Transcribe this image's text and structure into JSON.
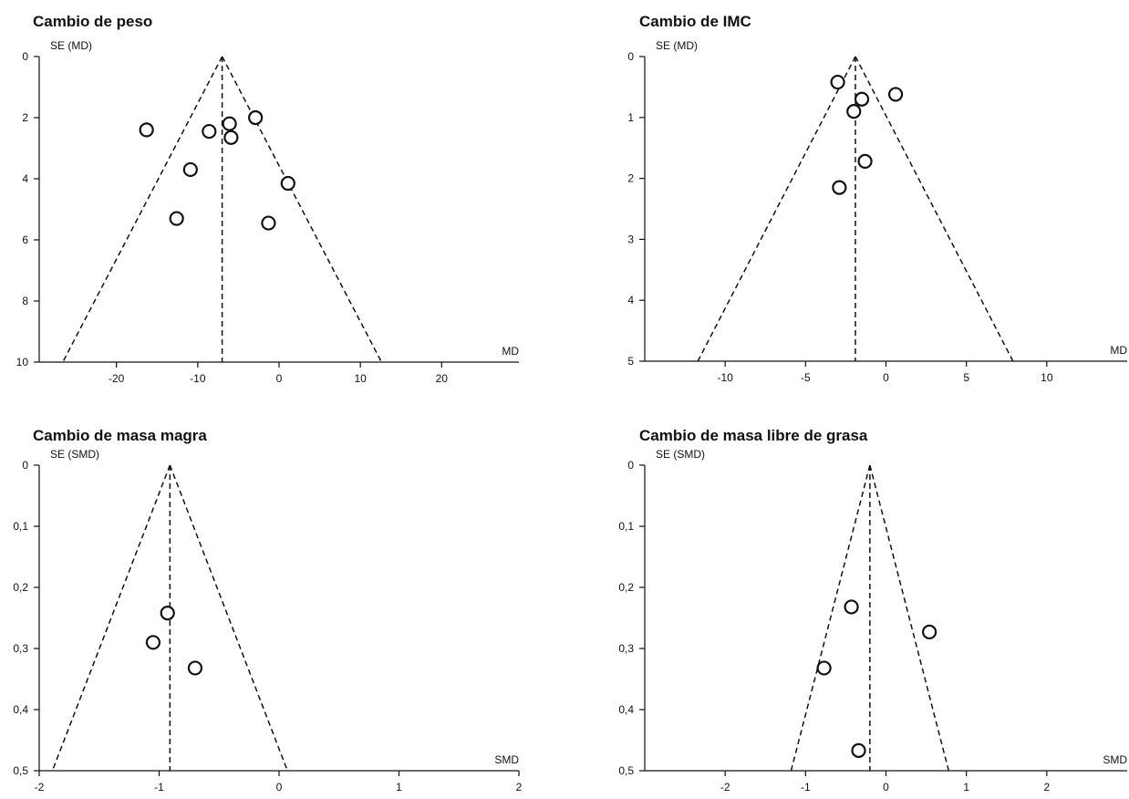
{
  "chart_data": [
    {
      "type": "scatter",
      "subtype": "funnel",
      "title": "Cambio de peso",
      "xlabel": "MD",
      "ylabel": "SE (MD)",
      "xlim": [
        -29.5,
        29.5
      ],
      "ylim": [
        10,
        0
      ],
      "y_reversed": true,
      "xticks": [
        -20,
        -10,
        0,
        10,
        20
      ],
      "xtick_labels": [
        "-20",
        "-10",
        "0",
        "10",
        "20"
      ],
      "yticks": [
        0,
        2,
        4,
        6,
        8,
        10
      ],
      "ytick_labels": [
        "0",
        "2",
        "4",
        "6",
        "8",
        "10"
      ],
      "pooled_estimate": -7,
      "funnel_limits_at_max_se": [
        -26.6,
        12.6
      ],
      "grid": false,
      "points": [
        {
          "x": -16.3,
          "y": 2.4
        },
        {
          "x": -8.6,
          "y": 2.45
        },
        {
          "x": -6.1,
          "y": 2.2
        },
        {
          "x": -5.9,
          "y": 2.65
        },
        {
          "x": -2.9,
          "y": 2.0
        },
        {
          "x": -10.9,
          "y": 3.7
        },
        {
          "x": 1.1,
          "y": 4.15
        },
        {
          "x": -12.6,
          "y": 5.3
        },
        {
          "x": -1.3,
          "y": 5.45
        }
      ]
    },
    {
      "type": "scatter",
      "subtype": "funnel",
      "title": "Cambio de IMC",
      "xlabel": "MD",
      "ylabel": "SE (MD)",
      "xlim": [
        -15,
        15
      ],
      "ylim": [
        5,
        0
      ],
      "y_reversed": true,
      "xticks": [
        -10,
        -5,
        0,
        5,
        10
      ],
      "xtick_labels": [
        "-10",
        "-5",
        "0",
        "5",
        "10"
      ],
      "yticks": [
        0,
        1,
        2,
        3,
        4,
        5
      ],
      "ytick_labels": [
        "0",
        "1",
        "2",
        "3",
        "4",
        "5"
      ],
      "pooled_estimate": -1.9,
      "funnel_limits_at_max_se": [
        -11.7,
        7.9
      ],
      "grid": false,
      "points": [
        {
          "x": -3.0,
          "y": 0.42
        },
        {
          "x": -1.5,
          "y": 0.7
        },
        {
          "x": 0.6,
          "y": 0.62
        },
        {
          "x": -2.0,
          "y": 0.9
        },
        {
          "x": -1.3,
          "y": 1.72
        },
        {
          "x": -2.9,
          "y": 2.15
        }
      ]
    },
    {
      "type": "scatter",
      "subtype": "funnel",
      "title": "Cambio de masa magra",
      "xlabel": "SMD",
      "ylabel": "SE (SMD)",
      "xlim": [
        -2,
        2
      ],
      "ylim": [
        0.5,
        0
      ],
      "y_reversed": true,
      "xticks": [
        -2,
        -1,
        0,
        1,
        2
      ],
      "xtick_labels": [
        "-2",
        "-1",
        "0",
        "1",
        "2"
      ],
      "yticks": [
        0,
        0.1,
        0.2,
        0.3,
        0.4,
        0.5
      ],
      "ytick_labels": [
        "0",
        "0,1",
        "0,2",
        "0,3",
        "0,4",
        "0,5"
      ],
      "pooled_estimate": -0.91,
      "funnel_limits_at_max_se": [
        -1.89,
        0.07
      ],
      "grid": false,
      "points": [
        {
          "x": -0.93,
          "y": 0.242
        },
        {
          "x": -1.05,
          "y": 0.29
        },
        {
          "x": -0.7,
          "y": 0.332
        }
      ]
    },
    {
      "type": "scatter",
      "subtype": "funnel",
      "title": "Cambio de masa libre de grasa",
      "xlabel": "SMD",
      "ylabel": "SE (SMD)",
      "xlim": [
        -3,
        3
      ],
      "ylim": [
        0.5,
        0
      ],
      "y_reversed": true,
      "xticks": [
        -2,
        -1,
        0,
        1,
        2
      ],
      "xtick_labels": [
        "-2",
        "-1",
        "0",
        "1",
        "2"
      ],
      "yticks": [
        0,
        0.1,
        0.2,
        0.3,
        0.4,
        0.5
      ],
      "ytick_labels": [
        "0",
        "0,1",
        "0,2",
        "0,3",
        "0,4",
        "0,5"
      ],
      "pooled_estimate": -0.2,
      "funnel_limits_at_max_se": [
        -1.18,
        0.78
      ],
      "grid": false,
      "points": [
        {
          "x": -0.43,
          "y": 0.232
        },
        {
          "x": 0.54,
          "y": 0.273
        },
        {
          "x": -0.77,
          "y": 0.332
        },
        {
          "x": -0.34,
          "y": 0.467
        }
      ]
    }
  ]
}
